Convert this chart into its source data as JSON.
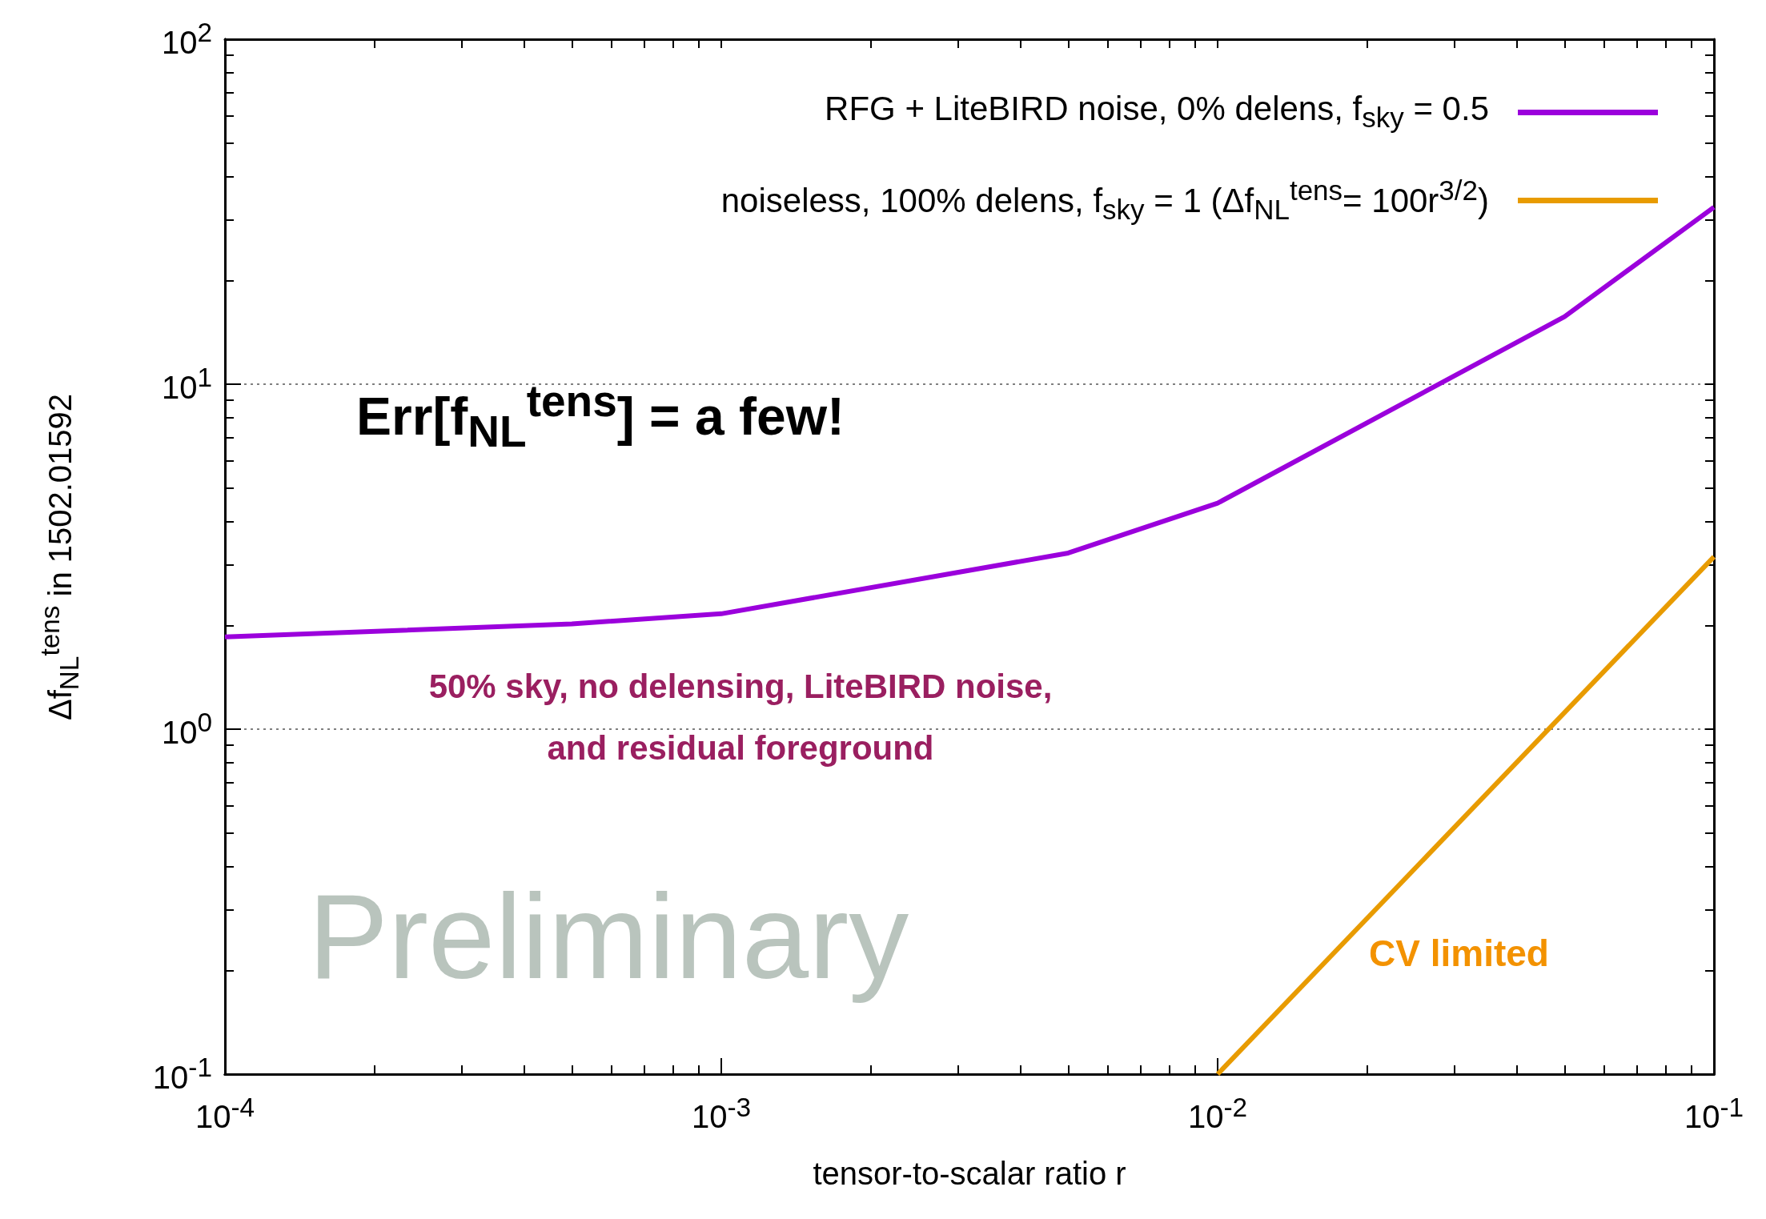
{
  "chart_data": {
    "type": "line",
    "xlabel": "tensor-to-scalar ratio r",
    "ylabel": "Δf$_{NL}$$^{tens}$ in 1502.01592",
    "log": "xy",
    "xlim": [
      0.0001,
      0.1
    ],
    "ylim": [
      0.1,
      100
    ],
    "xticks": [
      {
        "value": 0.0001,
        "label": "10$^{-4}$"
      },
      {
        "value": 0.001,
        "label": "10$^{-3}$"
      },
      {
        "value": 0.01,
        "label": "10$^{-2}$"
      },
      {
        "value": 0.1,
        "label": "10$^{-1}$"
      }
    ],
    "yticks": [
      {
        "value": 0.1,
        "label": "10$^{-1}$"
      },
      {
        "value": 1,
        "label": "10$^{0}$"
      },
      {
        "value": 10,
        "label": "10$^{1}$"
      },
      {
        "value": 100,
        "label": "10$^{2}$"
      }
    ],
    "grid": "y",
    "legend": "top right",
    "series": [
      {
        "name": "RFG + LiteBIRD noise, 0% delens, f$_{sky}$ = 0.5",
        "color": "#9b00dc",
        "x": [
          0.0001,
          0.0005,
          0.001,
          0.005,
          0.01,
          0.05,
          0.1
        ],
        "values": [
          1.85,
          2.02,
          2.16,
          3.24,
          4.52,
          15.7,
          32.6
        ]
      },
      {
        "name": "noiseless, 100% delens, f$_{sky}$ = 1 (Δf$_{NL}$$^{tens}$= 100r$^{3/2}$)",
        "color": "#e89b00",
        "x": [
          0.01,
          0.1
        ],
        "values": [
          0.1,
          3.16
        ]
      }
    ],
    "annotations": [
      "Err[f$_{NL}$$^{tens}$] = a few!",
      "50% sky, no delensing, LiteBIRD noise,\nand residual foreground",
      "Preliminary",
      "CV limited"
    ]
  }
}
